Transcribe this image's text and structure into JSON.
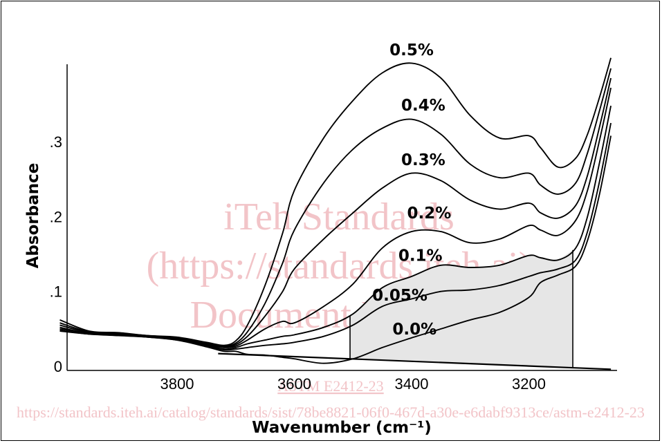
{
  "chart_data": {
    "type": "line",
    "xlabel": "Wavenumber (cm⁻¹)",
    "ylabel": "Absorbance",
    "xlim": [
      4000,
      3050
    ],
    "ylim": [
      0,
      0.4
    ],
    "x_ticks": [
      {
        "value": 3800,
        "label": "3800"
      },
      {
        "value": 3600,
        "label": "3600"
      },
      {
        "value": 3400,
        "label": "3400"
      },
      {
        "value": 3200,
        "label": "3200"
      }
    ],
    "y_ticks": [
      {
        "value": 0,
        "label": "0"
      },
      {
        "value": 0.1,
        "label": ".1"
      },
      {
        "value": 0.2,
        "label": ".2"
      },
      {
        "value": 0.3,
        "label": ".3"
      }
    ],
    "x": [
      4000,
      3950,
      3900,
      3850,
      3800,
      3750,
      3720,
      3700,
      3680,
      3650,
      3620,
      3600,
      3550,
      3500,
      3450,
      3400,
      3350,
      3300,
      3250,
      3200,
      3180,
      3150,
      3120,
      3100,
      3080,
      3060
    ],
    "series": [
      {
        "name": "0.5%",
        "label_at": [
          3400,
          0.423
        ],
        "values": [
          0.062,
          0.047,
          0.045,
          0.041,
          0.039,
          0.032,
          0.028,
          0.034,
          0.055,
          0.108,
          0.178,
          0.235,
          0.305,
          0.355,
          0.392,
          0.405,
          0.385,
          0.335,
          0.305,
          0.308,
          0.292,
          0.266,
          0.278,
          0.31,
          0.358,
          0.412
        ]
      },
      {
        "name": "0.4%",
        "label_at": [
          3380,
          0.349
        ],
        "values": [
          0.058,
          0.046,
          0.044,
          0.041,
          0.038,
          0.031,
          0.027,
          0.031,
          0.046,
          0.084,
          0.138,
          0.182,
          0.245,
          0.29,
          0.318,
          0.33,
          0.31,
          0.27,
          0.252,
          0.258,
          0.242,
          0.23,
          0.245,
          0.285,
          0.34,
          0.398
        ]
      },
      {
        "name": "0.3%",
        "label_at": [
          3380,
          0.276
        ],
        "values": [
          0.055,
          0.045,
          0.043,
          0.04,
          0.037,
          0.03,
          0.026,
          0.029,
          0.04,
          0.067,
          0.1,
          0.13,
          0.17,
          0.205,
          0.238,
          0.258,
          0.248,
          0.222,
          0.21,
          0.218,
          0.205,
          0.198,
          0.215,
          0.255,
          0.318,
          0.385
        ]
      },
      {
        "name": "0.2%",
        "label_at": [
          3370,
          0.205
        ],
        "values": [
          0.052,
          0.044,
          0.043,
          0.04,
          0.037,
          0.029,
          0.025,
          0.027,
          0.035,
          0.05,
          0.06,
          0.058,
          0.08,
          0.11,
          0.158,
          0.18,
          0.18,
          0.165,
          0.17,
          0.188,
          0.182,
          0.175,
          0.195,
          0.235,
          0.3,
          0.372
        ]
      },
      {
        "name": "0.1%",
        "label_at": [
          3385,
          0.148
        ],
        "values": [
          0.05,
          0.044,
          0.042,
          0.04,
          0.036,
          0.028,
          0.023,
          0.025,
          0.03,
          0.035,
          0.04,
          0.042,
          0.052,
          0.07,
          0.105,
          0.12,
          0.135,
          0.132,
          0.135,
          0.148,
          0.145,
          0.142,
          0.158,
          0.2,
          0.27,
          0.348
        ]
      },
      {
        "name": "0.05%",
        "label_at": [
          3420,
          0.095
        ],
        "values": [
          0.048,
          0.043,
          0.042,
          0.039,
          0.035,
          0.027,
          0.022,
          0.023,
          0.025,
          0.028,
          0.03,
          0.032,
          0.04,
          0.055,
          0.08,
          0.09,
          0.1,
          0.102,
          0.108,
          0.12,
          0.125,
          0.13,
          0.142,
          0.18,
          0.245,
          0.325
        ]
      },
      {
        "name": "0.0%",
        "label_at": [
          3395,
          0.05
        ],
        "values": [
          0.047,
          0.043,
          0.041,
          0.039,
          0.035,
          0.026,
          0.02,
          0.02,
          0.016,
          0.015,
          0.012,
          0.01,
          0.004,
          0.01,
          0.025,
          0.038,
          0.05,
          0.062,
          0.072,
          0.092,
          0.112,
          0.122,
          0.134,
          0.168,
          0.228,
          0.308
        ]
      }
    ],
    "baseline": {
      "from": [
        3730,
        0.017
      ],
      "to": [
        3060,
        -0.004
      ]
    },
    "shaded_region": {
      "x_from": 3505,
      "x_to": 3125,
      "upper_series": "0.1%",
      "fill": "#e6e6e6"
    }
  },
  "watermark": {
    "lines": [
      "iTeh Standards",
      "(https://standards.iteh.ai)",
      "Document Preview"
    ],
    "standard": "ASTM E2412-23",
    "url": "https://standards.iteh.ai/catalog/standards/sist/78be8821-06f0-467d-a30e-e6dabf9313ce/astm-e2412-23"
  }
}
